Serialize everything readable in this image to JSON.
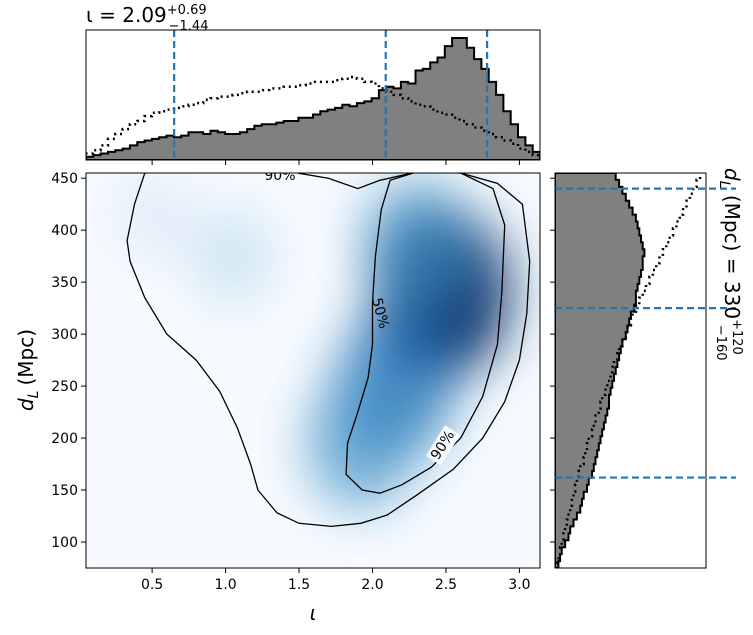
{
  "chart_data": [
    {
      "panel": "joint",
      "type": "heatmap",
      "xlabel": "ι",
      "ylabel_main": "d",
      "ylabel_sub": "L",
      "ylabel_unit": "(Mpc)",
      "xlim": [
        0.05,
        3.14
      ],
      "ylim": [
        75,
        455
      ],
      "x_ticks": [
        0.5,
        1.0,
        1.5,
        2.0,
        2.5,
        3.0
      ],
      "x_tick_labels": [
        "0.5",
        "1.0",
        "1.5",
        "2.0",
        "2.5",
        "3.0"
      ],
      "y_ticks": [
        100,
        150,
        200,
        250,
        300,
        350,
        400,
        450
      ],
      "y_tick_labels": [
        "100",
        "150",
        "200",
        "250",
        "300",
        "350",
        "400",
        "450"
      ],
      "colormap": "Blues",
      "density_peaks": [
        {
          "x": 2.47,
          "y": 340,
          "weight": 1.0
        },
        {
          "x": 2.3,
          "y": 385,
          "weight": 0.55
        },
        {
          "x": 2.15,
          "y": 250,
          "weight": 0.7
        },
        {
          "x": 1.92,
          "y": 195,
          "weight": 0.55
        },
        {
          "x": 1.05,
          "y": 375,
          "weight": 0.13
        },
        {
          "x": 0.5,
          "y": 415,
          "weight": 0.08
        }
      ],
      "contours": [
        {
          "label": "50%",
          "label_pos": {
            "x": 2.05,
            "y": 320
          },
          "points": [
            [
              2.12,
              448
            ],
            [
              2.3,
              456
            ],
            [
              2.6,
              455
            ],
            [
              2.82,
              440
            ],
            [
              2.9,
              405
            ],
            [
              2.88,
              340
            ],
            [
              2.85,
              290
            ],
            [
              2.75,
              240
            ],
            [
              2.6,
              200
            ],
            [
              2.4,
              172
            ],
            [
              2.2,
              155
            ],
            [
              2.05,
              147
            ],
            [
              1.93,
              150
            ],
            [
              1.82,
              165
            ],
            [
              1.83,
              195
            ],
            [
              1.9,
              225
            ],
            [
              1.97,
              258
            ],
            [
              2.0,
              290
            ],
            [
              2.0,
              330
            ],
            [
              2.02,
              375
            ],
            [
              2.06,
              420
            ],
            [
              2.12,
              448
            ]
          ]
        },
        {
          "label": "90%",
          "label_pos": {
            "x": 2.48,
            "y": 193
          },
          "points": [
            [
              0.45,
              455
            ],
            [
              1.0,
              458
            ],
            [
              1.4,
              457
            ],
            [
              1.7,
              450
            ],
            [
              1.9,
              440
            ],
            [
              2.05,
              448
            ],
            [
              2.3,
              456
            ],
            [
              2.6,
              455
            ],
            [
              2.85,
              445
            ],
            [
              3.02,
              425
            ],
            [
              3.07,
              370
            ],
            [
              3.05,
              320
            ],
            [
              3.0,
              275
            ],
            [
              2.9,
              235
            ],
            [
              2.75,
              200
            ],
            [
              2.55,
              170
            ],
            [
              2.3,
              145
            ],
            [
              2.1,
              126
            ],
            [
              1.92,
              118
            ],
            [
              1.72,
              115
            ],
            [
              1.5,
              118
            ],
            [
              1.35,
              128
            ],
            [
              1.22,
              150
            ],
            [
              1.17,
              175
            ],
            [
              1.08,
              210
            ],
            [
              0.96,
              245
            ],
            [
              0.8,
              275
            ],
            [
              0.6,
              300
            ],
            [
              0.45,
              335
            ],
            [
              0.35,
              370
            ],
            [
              0.33,
              390
            ],
            [
              0.38,
              425
            ],
            [
              0.45,
              455
            ]
          ]
        }
      ]
    },
    {
      "panel": "marginal_x",
      "type": "histogram",
      "title_text": "ι = 2.09",
      "title_sup": "+0.69",
      "title_sub": "−1.44",
      "quantiles": [
        0.65,
        2.09,
        2.78
      ],
      "series": [
        {
          "name": "",
          "style": "filled-step",
          "values": [
            2,
            3,
            4,
            5,
            6,
            7,
            9,
            11,
            12,
            13,
            14,
            15,
            14,
            15,
            17,
            17,
            16,
            18,
            17,
            16,
            16,
            17,
            19,
            21,
            22,
            22,
            23,
            24,
            24,
            26,
            26,
            28,
            30,
            31,
            32,
            34,
            33,
            35,
            36,
            38,
            43,
            45,
            44,
            48,
            47,
            55,
            56,
            60,
            63,
            70,
            75,
            75,
            69,
            62,
            56,
            48,
            40,
            30,
            22,
            14,
            9,
            5
          ]
        },
        {
          "name": "",
          "style": "dotted-step",
          "values": [
            4,
            6,
            9,
            13,
            16,
            19,
            22,
            24,
            27,
            29,
            30,
            31,
            32,
            33,
            34,
            35,
            37,
            38,
            39,
            39,
            40,
            41,
            42,
            42,
            43,
            44,
            44,
            45,
            45,
            46,
            47,
            48,
            48,
            48,
            49,
            50,
            51,
            50,
            48,
            47,
            44,
            42,
            40,
            38,
            36,
            34,
            33,
            31,
            29,
            28,
            26,
            24,
            22,
            20,
            18,
            16,
            14,
            12,
            10,
            7,
            5,
            3
          ]
        }
      ]
    },
    {
      "panel": "marginal_y",
      "type": "histogram",
      "title_main": "d",
      "title_sub_L": "L",
      "title_rest": " (Mpc) = 330",
      "title_sup": "+120",
      "title_sub": "−160",
      "quantiles": [
        162,
        325,
        440
      ],
      "series": [
        {
          "name": "",
          "style": "filled-step",
          "values": [
            2,
            3,
            4,
            6,
            8,
            9,
            11,
            13,
            15,
            16,
            17,
            19,
            20,
            22,
            23,
            24,
            25,
            26,
            27,
            28,
            29,
            30,
            31,
            32,
            32,
            33,
            34,
            35,
            36,
            37,
            38,
            39,
            40,
            42,
            43,
            44,
            45,
            47,
            48,
            48,
            49,
            50,
            51,
            52,
            52,
            53,
            52,
            51,
            50,
            49,
            48,
            46,
            44,
            42,
            40,
            38,
            36
          ]
        },
        {
          "name": "",
          "style": "dotted-step",
          "values": [
            1,
            2,
            3,
            4,
            5,
            6,
            7,
            8,
            9,
            10,
            11,
            12,
            13,
            14,
            15,
            17,
            18,
            19,
            20,
            22,
            23,
            24,
            26,
            27,
            28,
            30,
            31,
            33,
            34,
            35,
            37,
            38,
            40,
            42,
            43,
            45,
            46,
            48,
            50,
            52,
            54,
            56,
            58,
            60,
            62,
            64,
            66,
            68,
            70,
            72,
            74,
            76,
            78,
            80,
            82,
            84,
            86
          ]
        }
      ]
    }
  ]
}
